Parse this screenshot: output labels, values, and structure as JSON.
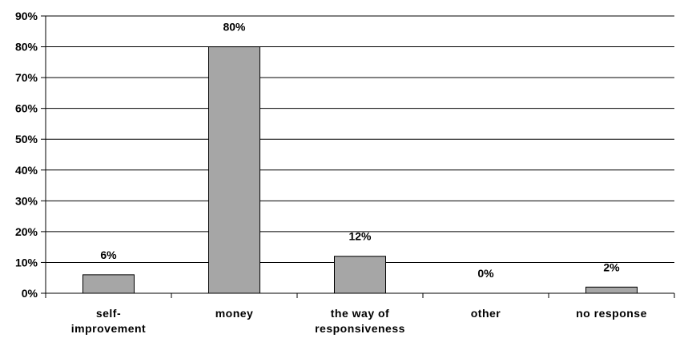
{
  "chart_data": {
    "type": "bar",
    "categories": [
      [
        "self-",
        "improvement"
      ],
      [
        "money"
      ],
      [
        "the way of",
        "responsiveness"
      ],
      [
        "other"
      ],
      [
        "no response"
      ]
    ],
    "values": [
      6,
      80,
      12,
      0,
      2
    ],
    "data_labels": [
      "6%",
      "80%",
      "12%",
      "0%",
      "2%"
    ],
    "title": "",
    "xlabel": "",
    "ylabel": "",
    "ylim": [
      0,
      90
    ],
    "y_ticks": [
      {
        "value": 0,
        "label": "0%"
      },
      {
        "value": 10,
        "label": "10%"
      },
      {
        "value": 20,
        "label": "20%"
      },
      {
        "value": 30,
        "label": "30%"
      },
      {
        "value": 40,
        "label": "40%"
      },
      {
        "value": 50,
        "label": "50%"
      },
      {
        "value": 60,
        "label": "60%"
      },
      {
        "value": 70,
        "label": "70%"
      },
      {
        "value": 80,
        "label": "80%"
      },
      {
        "value": 90,
        "label": "90%"
      }
    ],
    "grid": true,
    "legend": "none",
    "bar_color": "#a6a6a6"
  }
}
